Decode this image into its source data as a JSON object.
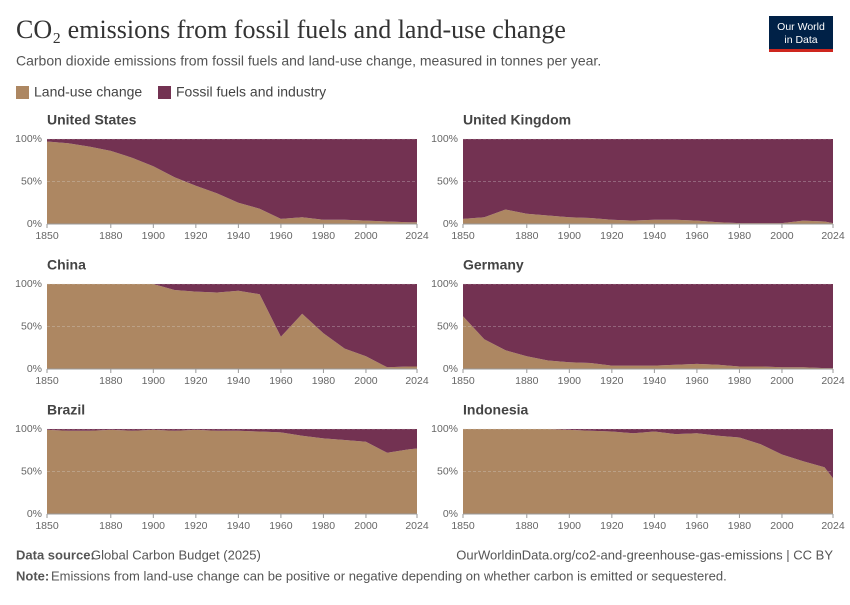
{
  "header": {
    "title": "CO₂ emissions from fossil fuels and land-use change",
    "subtitle": "Carbon dioxide emissions from fossil fuels and land-use change, measured in tonnes per year.",
    "logo": [
      "Our World",
      "in Data"
    ]
  },
  "chart_data": [
    {
      "type": "area",
      "stacked": true,
      "title": "United States",
      "x": [
        1850,
        1860,
        1870,
        1880,
        1890,
        1900,
        1910,
        1920,
        1930,
        1940,
        1950,
        1960,
        1970,
        1980,
        1990,
        2000,
        2010,
        2020,
        2024
      ],
      "series": [
        {
          "name": "Land-use change",
          "color": "#ad8762",
          "values": [
            97,
            95,
            91,
            86,
            78,
            68,
            55,
            45,
            36,
            25,
            18,
            6,
            8,
            5,
            5,
            4,
            3,
            2,
            2
          ]
        },
        {
          "name": "Fossil fuels and industry",
          "color": "#733252",
          "values": [
            3,
            5,
            9,
            14,
            22,
            32,
            45,
            55,
            64,
            75,
            82,
            94,
            92,
            95,
            95,
            96,
            97,
            98,
            98
          ]
        }
      ],
      "xlim": [
        1850,
        2024
      ],
      "xticks": [
        1850,
        1880,
        1900,
        1920,
        1940,
        1960,
        1980,
        2000,
        2024
      ],
      "ylim": [
        0,
        100
      ],
      "yticks": [
        {
          "value": 0,
          "label": "0%"
        },
        {
          "value": 50,
          "label": "50%"
        },
        {
          "value": 100,
          "label": "100%"
        }
      ]
    },
    {
      "type": "area",
      "stacked": true,
      "title": "United Kingdom",
      "x": [
        1850,
        1860,
        1870,
        1880,
        1890,
        1900,
        1910,
        1920,
        1930,
        1940,
        1950,
        1960,
        1970,
        1980,
        1990,
        2000,
        2010,
        2020,
        2024
      ],
      "series": [
        {
          "name": "Land-use change",
          "color": "#ad8762",
          "values": [
            6,
            8,
            17,
            12,
            10,
            8,
            7,
            5,
            4,
            5,
            5,
            4,
            2,
            1,
            1,
            1,
            4,
            3,
            1
          ]
        },
        {
          "name": "Fossil fuels and industry",
          "color": "#733252",
          "values": [
            94,
            92,
            83,
            88,
            90,
            92,
            93,
            95,
            96,
            95,
            95,
            96,
            98,
            99,
            99,
            99,
            96,
            97,
            99
          ]
        }
      ],
      "xlim": [
        1850,
        2024
      ],
      "xticks": [
        1850,
        1880,
        1900,
        1920,
        1940,
        1960,
        1980,
        2000,
        2024
      ],
      "ylim": [
        0,
        100
      ],
      "yticks": [
        {
          "value": 0,
          "label": "0%"
        },
        {
          "value": 50,
          "label": "50%"
        },
        {
          "value": 100,
          "label": "100%"
        }
      ]
    },
    {
      "type": "area",
      "stacked": true,
      "title": "China",
      "x": [
        1850,
        1860,
        1870,
        1880,
        1890,
        1900,
        1910,
        1920,
        1930,
        1940,
        1950,
        1960,
        1970,
        1980,
        1990,
        2000,
        2010,
        2020,
        2024
      ],
      "series": [
        {
          "name": "Land-use change",
          "color": "#ad8762",
          "values": [
            100,
            100,
            100,
            100,
            100,
            100,
            93,
            91,
            90,
            92,
            88,
            38,
            65,
            42,
            24,
            15,
            2,
            3,
            3
          ]
        },
        {
          "name": "Fossil fuels and industry",
          "color": "#733252",
          "values": [
            0,
            0,
            0,
            0,
            0,
            0,
            7,
            9,
            10,
            8,
            12,
            62,
            35,
            58,
            76,
            85,
            98,
            97,
            97
          ]
        }
      ],
      "xlim": [
        1850,
        2024
      ],
      "xticks": [
        1850,
        1880,
        1900,
        1920,
        1940,
        1960,
        1980,
        2000,
        2024
      ],
      "ylim": [
        0,
        100
      ],
      "yticks": [
        {
          "value": 0,
          "label": "0%"
        },
        {
          "value": 50,
          "label": "50%"
        },
        {
          "value": 100,
          "label": "100%"
        }
      ]
    },
    {
      "type": "area",
      "stacked": true,
      "title": "Germany",
      "x": [
        1850,
        1860,
        1870,
        1880,
        1890,
        1900,
        1910,
        1920,
        1930,
        1940,
        1950,
        1960,
        1970,
        1980,
        1990,
        2000,
        2010,
        2020,
        2024
      ],
      "series": [
        {
          "name": "Land-use change",
          "color": "#ad8762",
          "values": [
            62,
            35,
            22,
            15,
            10,
            8,
            7,
            4,
            4,
            4,
            5,
            6,
            5,
            3,
            3,
            2,
            2,
            1,
            1
          ]
        },
        {
          "name": "Fossil fuels and industry",
          "color": "#733252",
          "values": [
            38,
            65,
            78,
            85,
            90,
            92,
            93,
            96,
            96,
            96,
            95,
            94,
            95,
            97,
            97,
            98,
            98,
            99,
            99
          ]
        }
      ],
      "xlim": [
        1850,
        2024
      ],
      "xticks": [
        1850,
        1880,
        1900,
        1920,
        1940,
        1960,
        1980,
        2000,
        2024
      ],
      "ylim": [
        0,
        100
      ],
      "yticks": [
        {
          "value": 0,
          "label": "0%"
        },
        {
          "value": 50,
          "label": "50%"
        },
        {
          "value": 100,
          "label": "100%"
        }
      ]
    },
    {
      "type": "area",
      "stacked": true,
      "title": "Brazil",
      "x": [
        1850,
        1860,
        1870,
        1880,
        1890,
        1900,
        1910,
        1920,
        1930,
        1940,
        1950,
        1960,
        1970,
        1980,
        1990,
        2000,
        2010,
        2020,
        2024
      ],
      "series": [
        {
          "name": "Land-use change",
          "color": "#ad8762",
          "values": [
            99,
            98,
            98,
            99,
            98,
            99,
            98,
            99,
            98,
            98,
            97,
            96,
            92,
            89,
            87,
            85,
            72,
            76,
            77
          ]
        },
        {
          "name": "Fossil fuels and industry",
          "color": "#733252",
          "values": [
            1,
            2,
            2,
            1,
            2,
            1,
            2,
            1,
            2,
            2,
            3,
            4,
            8,
            11,
            13,
            15,
            28,
            24,
            23
          ]
        }
      ],
      "xlim": [
        1850,
        2024
      ],
      "xticks": [
        1850,
        1880,
        1900,
        1920,
        1940,
        1960,
        1980,
        2000,
        2024
      ],
      "ylim": [
        0,
        100
      ],
      "yticks": [
        {
          "value": 0,
          "label": "0%"
        },
        {
          "value": 50,
          "label": "50%"
        },
        {
          "value": 100,
          "label": "100%"
        }
      ]
    },
    {
      "type": "area",
      "stacked": true,
      "title": "Indonesia",
      "x": [
        1850,
        1860,
        1870,
        1880,
        1890,
        1900,
        1910,
        1920,
        1930,
        1940,
        1950,
        1960,
        1970,
        1980,
        1990,
        2000,
        2010,
        2020,
        2024
      ],
      "series": [
        {
          "name": "Land-use change",
          "color": "#ad8762",
          "values": [
            100,
            100,
            100,
            100,
            100,
            99,
            98,
            97,
            95,
            97,
            94,
            95,
            92,
            90,
            82,
            70,
            62,
            55,
            42
          ]
        },
        {
          "name": "Fossil fuels and industry",
          "color": "#733252",
          "values": [
            0,
            0,
            0,
            0,
            0,
            1,
            2,
            3,
            5,
            3,
            6,
            5,
            8,
            10,
            18,
            30,
            38,
            45,
            58
          ]
        }
      ],
      "xlim": [
        1850,
        2024
      ],
      "xticks": [
        1850,
        1880,
        1900,
        1920,
        1940,
        1960,
        1980,
        2000,
        2024
      ],
      "ylim": [
        0,
        100
      ],
      "yticks": [
        {
          "value": 0,
          "label": "0%"
        },
        {
          "value": 50,
          "label": "50%"
        },
        {
          "value": 100,
          "label": "100%"
        }
      ]
    }
  ],
  "footer": {
    "source_label": "Data source:",
    "source": "Global Carbon Budget (2025)",
    "url": "OurWorldinData.org/co2-and-greenhouse-gas-emissions | CC BY",
    "note_label": "Note:",
    "note": "Emissions from land-use change can be positive or negative depending on whether carbon is emitted or sequestered."
  }
}
